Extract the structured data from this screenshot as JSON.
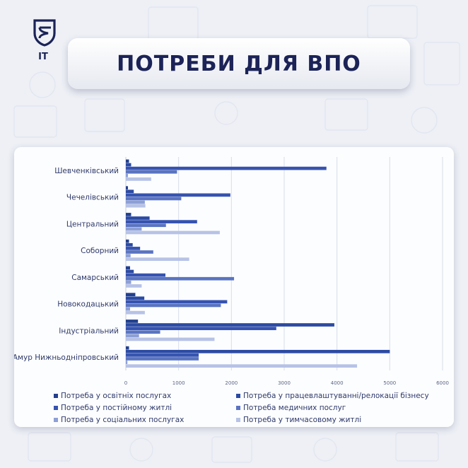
{
  "brand": {
    "logo_text": "IT"
  },
  "title": "ПОТРЕБИ ДЛЯ ВПО",
  "colors": {
    "background": "#eef0f6",
    "title": "#1b2357",
    "series": [
      "#23408e",
      "#2b4aa3",
      "#3653b0",
      "#5a74c2",
      "#8c9fd6",
      "#b7c2e6"
    ]
  },
  "chart_data": {
    "type": "bar",
    "orientation": "horizontal",
    "categories": [
      "Шевченківський",
      "Чечелівський",
      "Центральний",
      "Соборний",
      "Самарський",
      "Новокодацький",
      "Індустріальний",
      "Амур Нижньодніпровський"
    ],
    "series": [
      {
        "name": "Потреба у освітніх послугах",
        "values": [
          60,
          40,
          100,
          60,
          80,
          180,
          230,
          60
        ]
      },
      {
        "name": "Потреба у працевлаштуванні/релокації  бізнесу",
        "values": [
          100,
          150,
          450,
          130,
          150,
          350,
          3950,
          5000
        ]
      },
      {
        "name": "Потреба у постійному житлі",
        "values": [
          3800,
          1980,
          1350,
          270,
          750,
          1920,
          2850,
          1380
        ]
      },
      {
        "name": "Потреба  медичних послуг",
        "values": [
          970,
          1050,
          760,
          520,
          2050,
          1800,
          650,
          1380
        ]
      },
      {
        "name": "Потреба у соціальних послугах",
        "values": [
          40,
          360,
          300,
          90,
          100,
          80,
          250,
          30
        ]
      },
      {
        "name": "Потреба у тимчасовому житлі",
        "values": [
          480,
          370,
          1780,
          1200,
          300,
          360,
          1680,
          4380
        ]
      }
    ],
    "x_ticks": [
      "0",
      "1000",
      "2000",
      "3000",
      "4000",
      "5000",
      "6000"
    ],
    "xlim": [
      0,
      6000
    ],
    "grid": true,
    "legend_position": "bottom"
  }
}
